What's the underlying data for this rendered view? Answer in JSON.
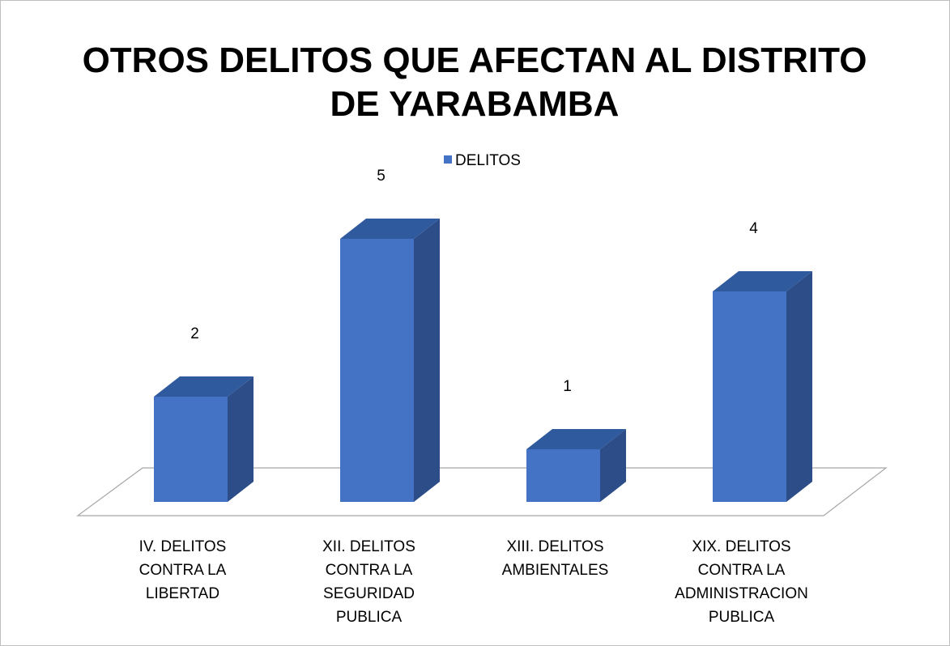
{
  "chart_data": {
    "type": "bar3d",
    "title": "OTROS DELITOS QUE AFECTAN AL DISTRITO DE YARABAMBA",
    "categories": [
      "IV. DELITOS CONTRA LA LIBERTAD",
      "XII. DELITOS CONTRA LA SEGURIDAD PUBLICA",
      "XIII. DELITOS AMBIENTALES",
      "XIX. DELITOS CONTRA LA ADMINISTRACION PUBLICA"
    ],
    "series": [
      {
        "name": "DELITOS",
        "color": "#4472c4",
        "values": [
          2,
          5,
          1,
          4
        ]
      }
    ],
    "legend": "top",
    "data_labels": true
  }
}
